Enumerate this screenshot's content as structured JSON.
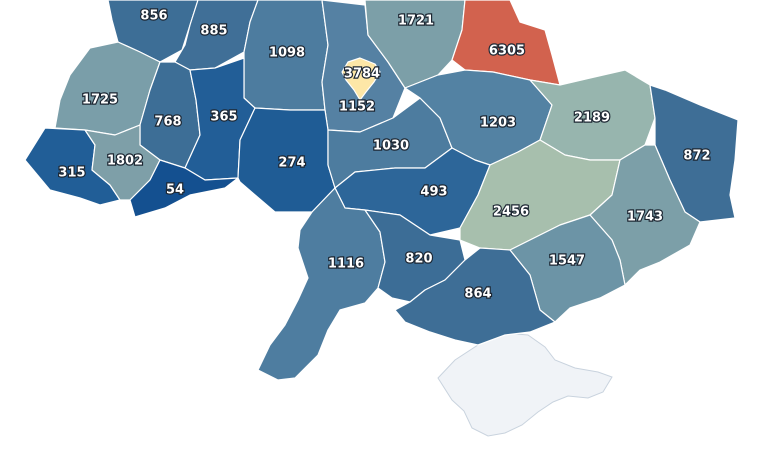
{
  "map": {
    "country": "Ukraine",
    "colors": {
      "very_high": "#d2624e",
      "high_highlight": "#fde7a7",
      "mid_high": "#a7bfad",
      "mid": "#7a9ea9",
      "mid_low": "#4f7ea0",
      "low": "#336c9c",
      "very_low": "#1a5592",
      "no_data": "#f0f3f7"
    },
    "regions": [
      {
        "id": "volyn",
        "value": "856",
        "color": "#3d6e96"
      },
      {
        "id": "rivne",
        "value": "885",
        "color": "#406f97"
      },
      {
        "id": "zhytomyr",
        "value": "1098",
        "color": "#4d7c9f"
      },
      {
        "id": "kyiv-oblast",
        "value": "1152",
        "color": "#5581a3"
      },
      {
        "id": "kyiv-city",
        "value": "3784",
        "color": "#fde7a7"
      },
      {
        "id": "chernihiv",
        "value": "1721",
        "color": "#7c9fa8"
      },
      {
        "id": "sumy",
        "value": "6305",
        "color": "#d2624e"
      },
      {
        "id": "lviv",
        "value": "1725",
        "color": "#7a9ea9"
      },
      {
        "id": "ternopil",
        "value": "768",
        "color": "#3d6e96"
      },
      {
        "id": "khmelnytskyi",
        "value": "365",
        "color": "#225e97"
      },
      {
        "id": "vinnytsia",
        "value": "274",
        "color": "#1f5c95"
      },
      {
        "id": "cherkasy",
        "value": "1030",
        "color": "#4d7c9f"
      },
      {
        "id": "poltava",
        "value": "1203",
        "color": "#5382a3"
      },
      {
        "id": "kharkiv",
        "value": "2189",
        "color": "#97b5ae"
      },
      {
        "id": "luhansk",
        "value": "872",
        "color": "#3e6e96"
      },
      {
        "id": "zakarpattia",
        "value": "315",
        "color": "#215e97"
      },
      {
        "id": "ivano-frankivsk",
        "value": "1802",
        "color": "#7e9fa8"
      },
      {
        "id": "chernivtsi",
        "value": "54",
        "color": "#145090"
      },
      {
        "id": "kirovohrad",
        "value": "493",
        "color": "#2d6699"
      },
      {
        "id": "dnipropetrovsk",
        "value": "2456",
        "color": "#a7bfad"
      },
      {
        "id": "donetsk",
        "value": "1743",
        "color": "#7c9fa8"
      },
      {
        "id": "odesa",
        "value": "1116",
        "color": "#4e7da0"
      },
      {
        "id": "mykolaiv",
        "value": "820",
        "color": "#3c6d96"
      },
      {
        "id": "zaporizhzhia",
        "value": "1547",
        "color": "#6c94a6"
      },
      {
        "id": "kherson",
        "value": "864",
        "color": "#3e6e96"
      }
    ]
  }
}
